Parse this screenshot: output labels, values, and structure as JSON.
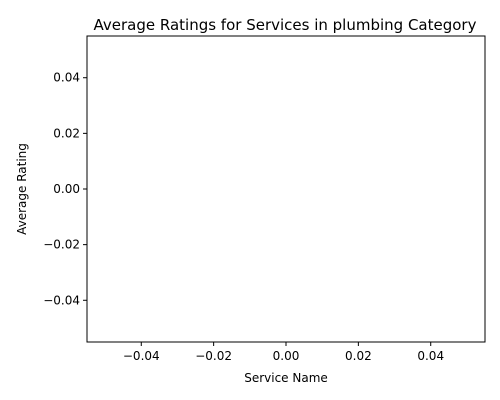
{
  "chart_data": {
    "type": "line",
    "title": "Average Ratings for Services in plumbing Category",
    "xlabel": "Service Name",
    "ylabel": "Average Rating",
    "x": [],
    "y": [],
    "xlim": [
      -0.055,
      0.055
    ],
    "ylim": [
      -0.055,
      0.055
    ],
    "xticks": [
      "−0.04",
      "−0.02",
      "0.00",
      "0.02",
      "0.04"
    ],
    "yticks": [
      "−0.04",
      "−0.02",
      "0.00",
      "0.02",
      "0.04"
    ],
    "grid": false,
    "legend": "none"
  }
}
